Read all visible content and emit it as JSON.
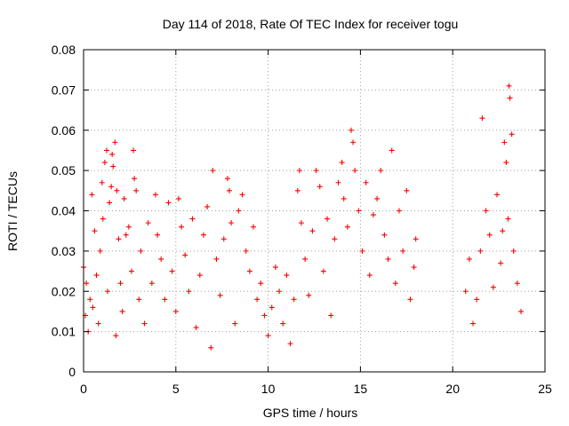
{
  "chart_data": {
    "type": "scatter",
    "title": "Day 114 of 2018, Rate Of TEC Index for receiver togu",
    "xlabel": "GPS time / hours",
    "ylabel": "ROTI / TECUs",
    "xlim": [
      0,
      25
    ],
    "ylim": [
      0,
      0.08
    ],
    "xticks": [
      0,
      5,
      10,
      15,
      20,
      25
    ],
    "yticks": [
      0,
      0.01,
      0.02,
      0.03,
      0.04,
      0.05,
      0.06,
      0.07,
      0.08
    ],
    "xtick_labels": [
      "0",
      "5",
      "10",
      "15",
      "20",
      "25"
    ],
    "ytick_labels": [
      "0",
      "0.01",
      "0.02",
      "0.03",
      "0.04",
      "0.05",
      "0.06",
      "0.07",
      "0.08"
    ],
    "grid": true,
    "marker": "+",
    "color": "#ff0000",
    "gap_hours": [
      18.1,
      20.6
    ],
    "series": [
      {
        "name": "ROTI",
        "points": [
          [
            0.0,
            0.026
          ],
          [
            0.1,
            0.014
          ],
          [
            0.15,
            0.022
          ],
          [
            0.25,
            0.01
          ],
          [
            0.35,
            0.018
          ],
          [
            0.45,
            0.044
          ],
          [
            0.5,
            0.016
          ],
          [
            0.6,
            0.035
          ],
          [
            0.7,
            0.024
          ],
          [
            0.8,
            0.012
          ],
          [
            0.9,
            0.03
          ],
          [
            1.0,
            0.047
          ],
          [
            1.05,
            0.038
          ],
          [
            1.15,
            0.052
          ],
          [
            1.25,
            0.055
          ],
          [
            1.3,
            0.02
          ],
          [
            1.4,
            0.042
          ],
          [
            1.5,
            0.046
          ],
          [
            1.55,
            0.054
          ],
          [
            1.6,
            0.051
          ],
          [
            1.7,
            0.057
          ],
          [
            1.75,
            0.009
          ],
          [
            1.8,
            0.045
          ],
          [
            1.9,
            0.033
          ],
          [
            2.0,
            0.022
          ],
          [
            2.1,
            0.015
          ],
          [
            2.2,
            0.043
          ],
          [
            2.3,
            0.034
          ],
          [
            2.45,
            0.036
          ],
          [
            2.6,
            0.025
          ],
          [
            2.7,
            0.055
          ],
          [
            2.75,
            0.048
          ],
          [
            2.85,
            0.045
          ],
          [
            3.0,
            0.018
          ],
          [
            3.1,
            0.03
          ],
          [
            3.3,
            0.012
          ],
          [
            3.5,
            0.037
          ],
          [
            3.7,
            0.022
          ],
          [
            3.9,
            0.044
          ],
          [
            4.0,
            0.034
          ],
          [
            4.2,
            0.028
          ],
          [
            4.4,
            0.018
          ],
          [
            4.6,
            0.042
          ],
          [
            4.8,
            0.025
          ],
          [
            5.0,
            0.015
          ],
          [
            5.15,
            0.043
          ],
          [
            5.3,
            0.036
          ],
          [
            5.5,
            0.029
          ],
          [
            5.7,
            0.02
          ],
          [
            5.9,
            0.038
          ],
          [
            6.1,
            0.011
          ],
          [
            6.3,
            0.024
          ],
          [
            6.5,
            0.034
          ],
          [
            6.7,
            0.041
          ],
          [
            6.9,
            0.006
          ],
          [
            7.0,
            0.05
          ],
          [
            7.2,
            0.028
          ],
          [
            7.4,
            0.019
          ],
          [
            7.6,
            0.033
          ],
          [
            7.8,
            0.048
          ],
          [
            7.9,
            0.045
          ],
          [
            8.0,
            0.037
          ],
          [
            8.2,
            0.012
          ],
          [
            8.4,
            0.04
          ],
          [
            8.6,
            0.044
          ],
          [
            8.8,
            0.03
          ],
          [
            9.0,
            0.025
          ],
          [
            9.2,
            0.036
          ],
          [
            9.4,
            0.018
          ],
          [
            9.6,
            0.022
          ],
          [
            9.8,
            0.014
          ],
          [
            10.0,
            0.009
          ],
          [
            10.2,
            0.016
          ],
          [
            10.4,
            0.026
          ],
          [
            10.6,
            0.02
          ],
          [
            10.8,
            0.012
          ],
          [
            11.0,
            0.024
          ],
          [
            11.2,
            0.007
          ],
          [
            11.4,
            0.018
          ],
          [
            11.6,
            0.045
          ],
          [
            11.7,
            0.05
          ],
          [
            11.8,
            0.037
          ],
          [
            12.0,
            0.028
          ],
          [
            12.2,
            0.019
          ],
          [
            12.4,
            0.035
          ],
          [
            12.6,
            0.05
          ],
          [
            12.8,
            0.046
          ],
          [
            13.0,
            0.025
          ],
          [
            13.2,
            0.038
          ],
          [
            13.4,
            0.014
          ],
          [
            13.6,
            0.033
          ],
          [
            13.8,
            0.047
          ],
          [
            14.0,
            0.052
          ],
          [
            14.1,
            0.043
          ],
          [
            14.3,
            0.036
          ],
          [
            14.5,
            0.06
          ],
          [
            14.6,
            0.057
          ],
          [
            14.7,
            0.05
          ],
          [
            14.9,
            0.04
          ],
          [
            15.1,
            0.03
          ],
          [
            15.3,
            0.047
          ],
          [
            15.5,
            0.024
          ],
          [
            15.7,
            0.039
          ],
          [
            15.9,
            0.043
          ],
          [
            16.1,
            0.05
          ],
          [
            16.3,
            0.034
          ],
          [
            16.5,
            0.028
          ],
          [
            16.7,
            0.055
          ],
          [
            16.9,
            0.022
          ],
          [
            17.1,
            0.04
          ],
          [
            17.3,
            0.03
          ],
          [
            17.5,
            0.045
          ],
          [
            17.7,
            0.018
          ],
          [
            17.9,
            0.026
          ],
          [
            18.0,
            0.033
          ],
          [
            20.7,
            0.02
          ],
          [
            20.9,
            0.028
          ],
          [
            21.1,
            0.012
          ],
          [
            21.3,
            0.018
          ],
          [
            21.5,
            0.03
          ],
          [
            21.6,
            0.063
          ],
          [
            21.8,
            0.04
          ],
          [
            22.0,
            0.034
          ],
          [
            22.2,
            0.021
          ],
          [
            22.4,
            0.044
          ],
          [
            22.6,
            0.027
          ],
          [
            22.7,
            0.035
          ],
          [
            22.8,
            0.057
          ],
          [
            22.9,
            0.052
          ],
          [
            23.0,
            0.038
          ],
          [
            23.05,
            0.071
          ],
          [
            23.1,
            0.068
          ],
          [
            23.2,
            0.059
          ],
          [
            23.3,
            0.03
          ],
          [
            23.5,
            0.022
          ],
          [
            23.7,
            0.015
          ]
        ]
      }
    ]
  }
}
